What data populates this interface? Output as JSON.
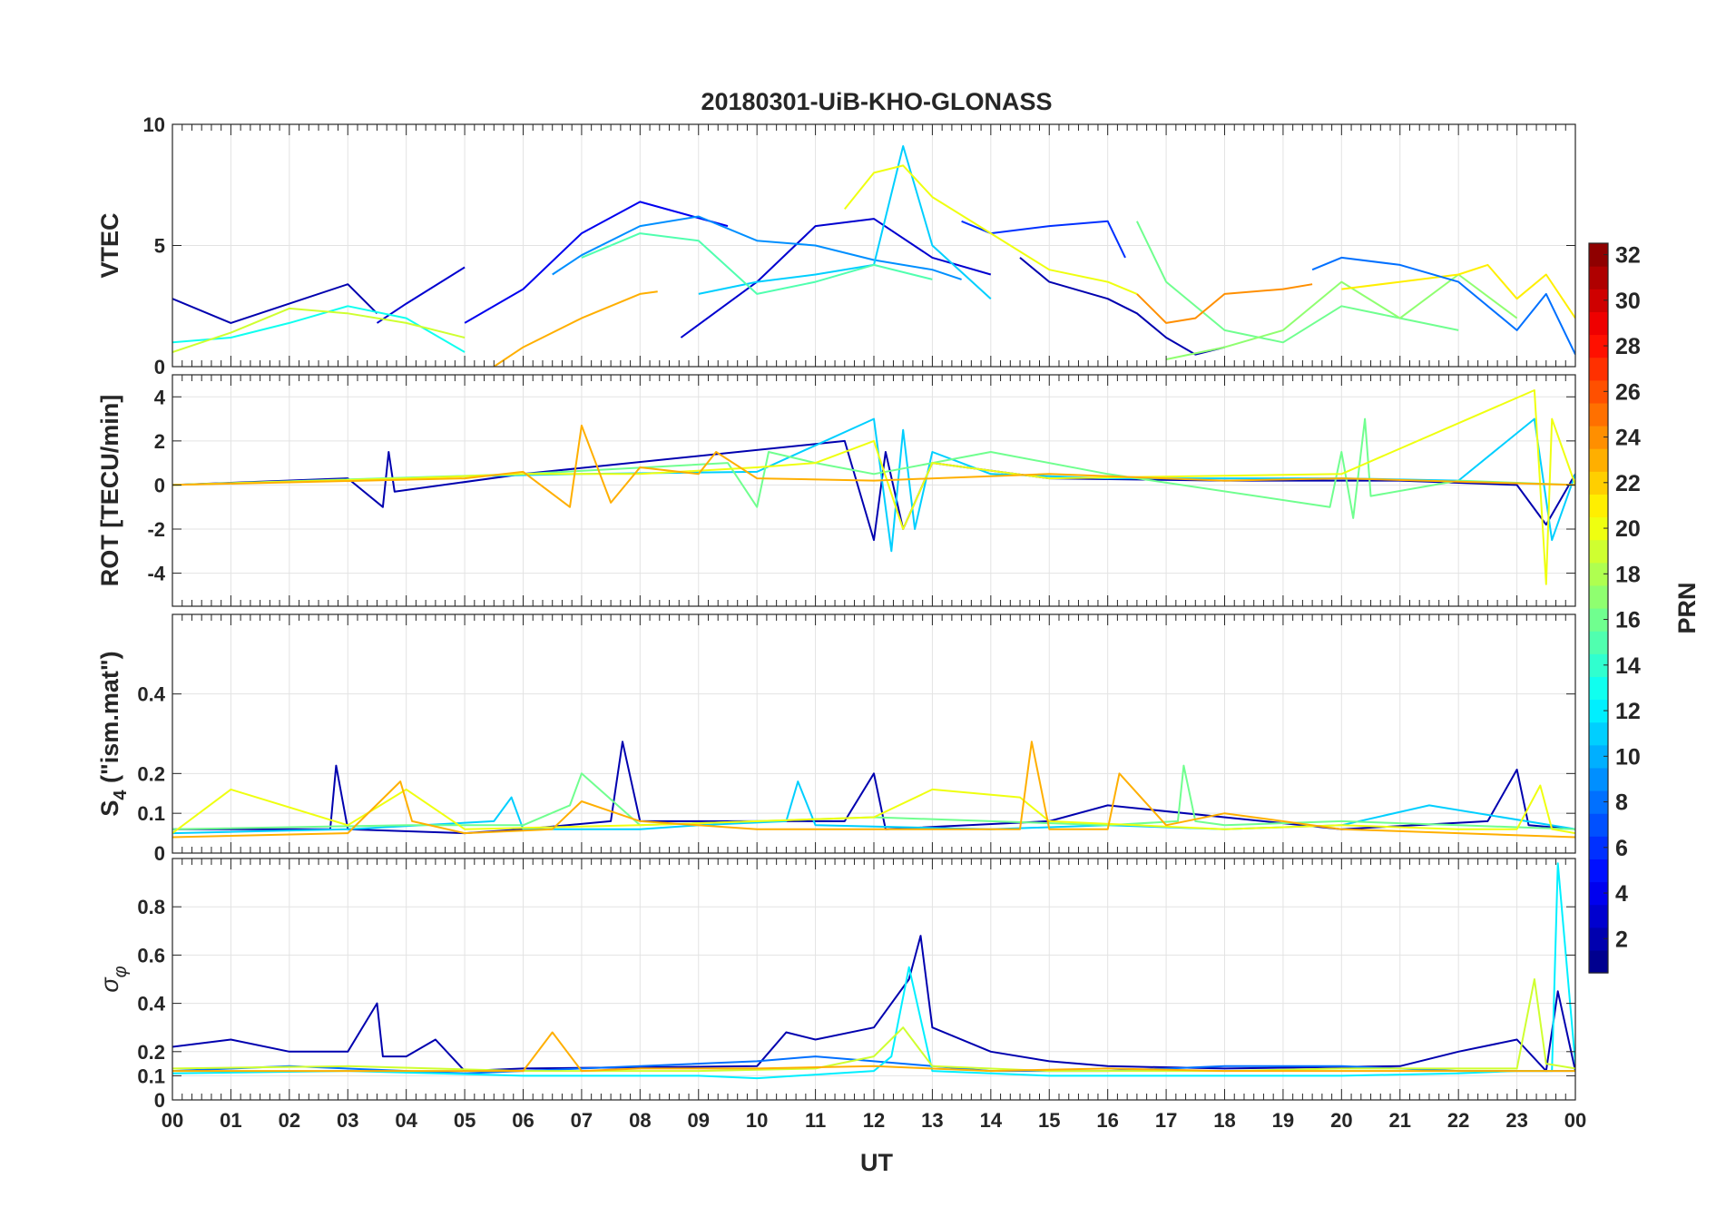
{
  "figure": {
    "title": "20180301-UiB-KHO-GLONASS",
    "xlabel": "UT",
    "x_ticks": [
      "00",
      "01",
      "02",
      "03",
      "04",
      "05",
      "06",
      "07",
      "08",
      "09",
      "10",
      "11",
      "12",
      "13",
      "14",
      "15",
      "16",
      "17",
      "18",
      "19",
      "20",
      "21",
      "22",
      "23",
      "00"
    ]
  },
  "colorbar": {
    "label": "PRN",
    "range": [
      1,
      32
    ],
    "ticks": [
      "2",
      "4",
      "6",
      "8",
      "10",
      "12",
      "14",
      "16",
      "18",
      "20",
      "22",
      "24",
      "26",
      "28",
      "30",
      "32"
    ],
    "colormap": "jet"
  },
  "chart_data": [
    {
      "type": "line",
      "ylabel": "VTEC",
      "xlim": [
        0,
        24
      ],
      "ylim": [
        0,
        10
      ],
      "y_ticks": [
        "0",
        "5",
        "10"
      ],
      "grid": true,
      "series": [
        {
          "prn": 2,
          "x": [
            0,
            1,
            2,
            3,
            3.5
          ],
          "y": [
            2.8,
            1.8,
            2.6,
            3.4,
            2.2
          ]
        },
        {
          "prn": 3,
          "x": [
            3.5,
            4,
            5
          ],
          "y": [
            1.8,
            2.6,
            4.1
          ]
        },
        {
          "prn": 4,
          "x": [
            5,
            6,
            7,
            8,
            9.5
          ],
          "y": [
            1.8,
            3.2,
            5.5,
            6.8,
            5.8
          ]
        },
        {
          "prn": 3,
          "x": [
            8.7,
            10,
            11,
            12,
            13,
            14
          ],
          "y": [
            1.2,
            3.5,
            5.8,
            6.1,
            4.5,
            3.8
          ]
        },
        {
          "prn": 6,
          "x": [
            13.5,
            14,
            15,
            16,
            16.3
          ],
          "y": [
            6.0,
            5.5,
            5.8,
            6.0,
            4.5
          ]
        },
        {
          "prn": 2,
          "x": [
            14.5,
            15,
            16,
            16.5,
            17,
            17.5,
            18
          ],
          "y": [
            4.5,
            3.5,
            2.8,
            2.2,
            1.2,
            0.5,
            0.8
          ]
        },
        {
          "prn": 9,
          "x": [
            6.5,
            7,
            8,
            9,
            10,
            11,
            12,
            13,
            13.5
          ],
          "y": [
            3.8,
            4.6,
            5.8,
            6.2,
            5.2,
            5.0,
            4.4,
            4.0,
            3.6
          ]
        },
        {
          "prn": 11,
          "x": [
            9,
            10,
            11,
            12,
            12.5,
            13,
            14
          ],
          "y": [
            3.0,
            3.5,
            3.8,
            4.2,
            9.1,
            5.0,
            2.8
          ]
        },
        {
          "prn": 13,
          "x": [
            0,
            1,
            2,
            3,
            4,
            5
          ],
          "y": [
            1.0,
            1.2,
            1.8,
            2.5,
            2.0,
            0.6
          ]
        },
        {
          "prn": 15,
          "x": [
            7,
            8,
            9,
            10,
            11,
            12,
            13
          ],
          "y": [
            4.5,
            5.5,
            5.2,
            3.0,
            3.5,
            4.2,
            3.6
          ]
        },
        {
          "prn": 16,
          "x": [
            16.5,
            17,
            18,
            19,
            20,
            21,
            22
          ],
          "y": [
            6.0,
            3.5,
            1.5,
            1.0,
            2.5,
            2.0,
            1.5
          ]
        },
        {
          "prn": 17,
          "x": [
            17,
            18,
            19,
            20,
            21,
            22,
            23
          ],
          "y": [
            0.3,
            0.8,
            1.5,
            3.5,
            2.0,
            3.8,
            2.0
          ]
        },
        {
          "prn": 19,
          "x": [
            0,
            1,
            2,
            3,
            4,
            5
          ],
          "y": [
            0.6,
            1.4,
            2.4,
            2.2,
            1.8,
            1.2
          ]
        },
        {
          "prn": 20,
          "x": [
            11.5,
            12,
            12.5,
            13,
            14,
            15,
            16,
            16.5
          ],
          "y": [
            6.5,
            8.0,
            8.3,
            7.0,
            5.5,
            4.0,
            3.5,
            3.0
          ]
        },
        {
          "prn": 21,
          "x": [
            20,
            21,
            22,
            22.5,
            23,
            23.5,
            24
          ],
          "y": [
            3.2,
            3.5,
            3.8,
            4.2,
            2.8,
            3.8,
            2.0
          ]
        },
        {
          "prn": 23,
          "x": [
            5.5,
            6,
            7,
            8,
            8.3
          ],
          "y": [
            0,
            0.8,
            2.0,
            3.0,
            3.1
          ]
        },
        {
          "prn": 24,
          "x": [
            16.5,
            17,
            17.5,
            18,
            19,
            19.5
          ],
          "y": [
            3.0,
            1.8,
            2.0,
            3.0,
            3.2,
            3.4
          ]
        },
        {
          "prn": 8,
          "x": [
            19.5,
            20,
            21,
            22,
            23,
            23.5,
            24
          ],
          "y": [
            4.0,
            4.5,
            4.2,
            3.5,
            1.5,
            3.0,
            0.5
          ]
        }
      ]
    },
    {
      "type": "line",
      "ylabel": "ROT [TECU/min]",
      "xlim": [
        0,
        24
      ],
      "ylim": [
        -5.5,
        5
      ],
      "y_ticks": [
        "-4",
        "-2",
        "0",
        "2",
        "4"
      ],
      "grid": true,
      "series": [
        {
          "prn": 2,
          "x": [
            0,
            3,
            3.6,
            3.7,
            3.8,
            6,
            11.5,
            12,
            12.2,
            12.5,
            13,
            15,
            18,
            21,
            23,
            23.5,
            24
          ],
          "y": [
            0,
            0.3,
            -1.0,
            1.5,
            -0.3,
            0.5,
            2.0,
            -2.5,
            1.5,
            -2.0,
            1.0,
            0.3,
            0.2,
            0.2,
            0,
            -1.8,
            0.5
          ]
        },
        {
          "prn": 11,
          "x": [
            0,
            5,
            7,
            10,
            12,
            12.3,
            12.5,
            12.7,
            13,
            14,
            16,
            20,
            22,
            23.3,
            23.6,
            24
          ],
          "y": [
            0,
            0.4,
            0.5,
            0.6,
            3.0,
            -3.0,
            2.5,
            -2.0,
            1.5,
            0.5,
            0.3,
            0.3,
            0.2,
            3.0,
            -2.5,
            0.5
          ]
        },
        {
          "prn": 16,
          "x": [
            0,
            6,
            9.5,
            10,
            10.2,
            11,
            12,
            14,
            16,
            19.8,
            20,
            20.2,
            20.4,
            20.5,
            22,
            24
          ],
          "y": [
            0,
            0.5,
            1.0,
            -1.0,
            1.5,
            1.0,
            0.5,
            1.5,
            0.5,
            -1.0,
            1.5,
            -1.5,
            3.0,
            -0.5,
            0.2,
            0
          ]
        },
        {
          "prn": 20,
          "x": [
            0,
            4,
            6,
            8,
            10,
            11,
            12,
            12.5,
            13,
            15,
            20,
            23.3,
            23.5,
            23.6,
            24
          ],
          "y": [
            0,
            0.3,
            0.5,
            0.5,
            0.8,
            1.0,
            2.0,
            -2.0,
            1.0,
            0.3,
            0.5,
            4.3,
            -4.5,
            3.0,
            0
          ]
        },
        {
          "prn": 23,
          "x": [
            0,
            5,
            6,
            6.8,
            7,
            7.5,
            8,
            9,
            9.3,
            10,
            12,
            15,
            18,
            20,
            24
          ],
          "y": [
            0,
            0.3,
            0.6,
            -1.0,
            2.7,
            -0.8,
            0.8,
            0.5,
            1.5,
            0.3,
            0.2,
            0.5,
            0.2,
            0.3,
            0
          ]
        }
      ]
    },
    {
      "type": "line",
      "ylabel": "S4 (\"ism.mat\")",
      "ylabel_base": "S",
      "ylabel_sub": "4",
      "ylabel_rest": " (\"ism.mat\")",
      "xlim": [
        0,
        24
      ],
      "ylim": [
        0,
        0.6
      ],
      "y_ticks": [
        "0",
        "0.1",
        "0.2",
        "0.4"
      ],
      "grid": true,
      "series": [
        {
          "prn": 2,
          "x": [
            0,
            2.7,
            2.8,
            3,
            5,
            6,
            7.5,
            7.7,
            8,
            11.5,
            12,
            12.2,
            15,
            16,
            20,
            22.5,
            23,
            23.2,
            24
          ],
          "y": [
            0.06,
            0.06,
            0.22,
            0.06,
            0.05,
            0.06,
            0.08,
            0.28,
            0.08,
            0.08,
            0.2,
            0.06,
            0.08,
            0.12,
            0.06,
            0.08,
            0.21,
            0.07,
            0.06
          ]
        },
        {
          "prn": 11,
          "x": [
            0,
            3,
            5.5,
            5.8,
            6,
            8,
            9,
            10.5,
            10.7,
            11,
            14,
            16,
            18,
            20,
            21.5,
            24
          ],
          "y": [
            0.05,
            0.06,
            0.08,
            0.14,
            0.06,
            0.06,
            0.07,
            0.08,
            0.18,
            0.07,
            0.06,
            0.07,
            0.06,
            0.07,
            0.12,
            0.06
          ]
        },
        {
          "prn": 16,
          "x": [
            0,
            4,
            6,
            6.8,
            7,
            8,
            10,
            12,
            14,
            16,
            17.2,
            17.3,
            17.5,
            18,
            20,
            22,
            24
          ],
          "y": [
            0.06,
            0.07,
            0.07,
            0.12,
            0.2,
            0.07,
            0.08,
            0.09,
            0.08,
            0.07,
            0.08,
            0.22,
            0.08,
            0.07,
            0.08,
            0.07,
            0.06
          ]
        },
        {
          "prn": 20,
          "x": [
            0,
            1,
            3,
            4,
            5,
            8,
            10,
            12,
            13,
            14.5,
            15,
            18,
            20,
            22,
            23,
            23.4,
            23.6,
            24
          ],
          "y": [
            0.05,
            0.16,
            0.07,
            0.16,
            0.06,
            0.07,
            0.08,
            0.09,
            0.16,
            0.14,
            0.08,
            0.06,
            0.07,
            0.06,
            0.06,
            0.17,
            0.06,
            0.05
          ]
        },
        {
          "prn": 23,
          "x": [
            0,
            3,
            3.9,
            4.1,
            5,
            6.5,
            7,
            8,
            10,
            12,
            14.5,
            14.7,
            15,
            16,
            16.2,
            17,
            18,
            20,
            22,
            24
          ],
          "y": [
            0.04,
            0.05,
            0.18,
            0.08,
            0.05,
            0.06,
            0.13,
            0.08,
            0.06,
            0.06,
            0.06,
            0.28,
            0.06,
            0.06,
            0.2,
            0.07,
            0.1,
            0.06,
            0.05,
            0.04
          ]
        }
      ]
    },
    {
      "type": "line",
      "ylabel": "σ φ",
      "ylabel_base": "σ",
      "ylabel_sub": "φ",
      "ylabel_rest": "",
      "xlim": [
        0,
        24
      ],
      "ylim": [
        0,
        1
      ],
      "y_ticks": [
        "0",
        "0.1",
        "0.2",
        "0.4",
        "0.6",
        "0.8"
      ],
      "grid": true,
      "series": [
        {
          "prn": 2,
          "x": [
            0,
            1,
            2,
            3,
            3.5,
            3.6,
            4,
            4.5,
            5,
            6,
            10,
            10.5,
            11,
            12,
            12.6,
            12.8,
            13,
            14,
            15,
            16,
            18,
            21,
            22,
            23,
            23.5,
            23.7,
            24
          ],
          "y": [
            0.22,
            0.25,
            0.2,
            0.2,
            0.4,
            0.18,
            0.18,
            0.25,
            0.12,
            0.13,
            0.14,
            0.28,
            0.25,
            0.3,
            0.5,
            0.68,
            0.3,
            0.2,
            0.16,
            0.14,
            0.13,
            0.14,
            0.2,
            0.25,
            0.12,
            0.45,
            0.12
          ]
        },
        {
          "prn": 8,
          "x": [
            0,
            2,
            5,
            8,
            10,
            11,
            12,
            14,
            16,
            18,
            20,
            22,
            24
          ],
          "y": [
            0.12,
            0.14,
            0.11,
            0.14,
            0.16,
            0.18,
            0.16,
            0.12,
            0.12,
            0.14,
            0.14,
            0.12,
            0.12
          ]
        },
        {
          "prn": 12,
          "x": [
            0,
            3,
            6,
            9,
            10,
            12,
            12.3,
            12.6,
            13,
            15,
            18,
            20,
            22,
            23,
            23.6,
            23.7,
            24
          ],
          "y": [
            0.11,
            0.12,
            0.1,
            0.1,
            0.09,
            0.12,
            0.18,
            0.55,
            0.12,
            0.1,
            0.1,
            0.1,
            0.11,
            0.12,
            0.12,
            0.98,
            0.15
          ]
        },
        {
          "prn": 19,
          "x": [
            0,
            3,
            6,
            9,
            11,
            12,
            12.5,
            13,
            15,
            18,
            20,
            23,
            23.3,
            23.5,
            24
          ],
          "y": [
            0.13,
            0.14,
            0.12,
            0.12,
            0.13,
            0.18,
            0.3,
            0.14,
            0.12,
            0.12,
            0.13,
            0.13,
            0.5,
            0.15,
            0.13
          ]
        },
        {
          "prn": 23,
          "x": [
            0,
            3,
            6,
            6.5,
            7,
            8,
            10,
            12,
            14,
            16,
            18,
            20,
            22,
            24
          ],
          "y": [
            0.12,
            0.12,
            0.12,
            0.28,
            0.12,
            0.13,
            0.13,
            0.14,
            0.12,
            0.13,
            0.12,
            0.12,
            0.12,
            0.12
          ]
        }
      ]
    }
  ]
}
